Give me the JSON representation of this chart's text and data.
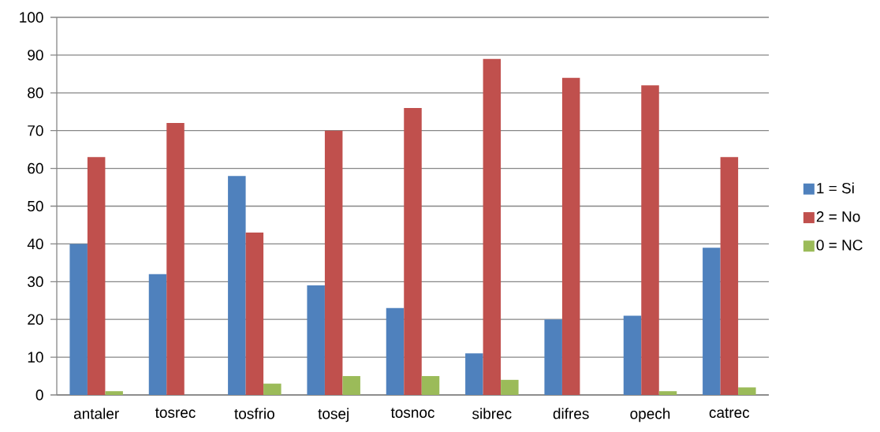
{
  "chart_data": {
    "type": "bar",
    "categories": [
      "antaler",
      "tosrec",
      "tosfrio",
      "tosej",
      "tosnoc",
      "sibrec",
      "difres",
      "opech",
      "catrec"
    ],
    "series": [
      {
        "name": "1 = Si",
        "color": "#4f81bd",
        "values": [
          40,
          32,
          58,
          29,
          23,
          11,
          20,
          21,
          39
        ]
      },
      {
        "name": "2 = No",
        "color": "#c0504d",
        "values": [
          63,
          72,
          43,
          70,
          76,
          89,
          84,
          82,
          63
        ]
      },
      {
        "name": "0 = NC",
        "color": "#9bbb59",
        "values": [
          1,
          0,
          3,
          5,
          5,
          4,
          0,
          1,
          2
        ]
      }
    ],
    "ylim": [
      0,
      100
    ],
    "yticks": [
      0,
      10,
      20,
      30,
      40,
      50,
      60,
      70,
      80,
      90,
      100
    ],
    "grid": "y",
    "legend": "right"
  }
}
